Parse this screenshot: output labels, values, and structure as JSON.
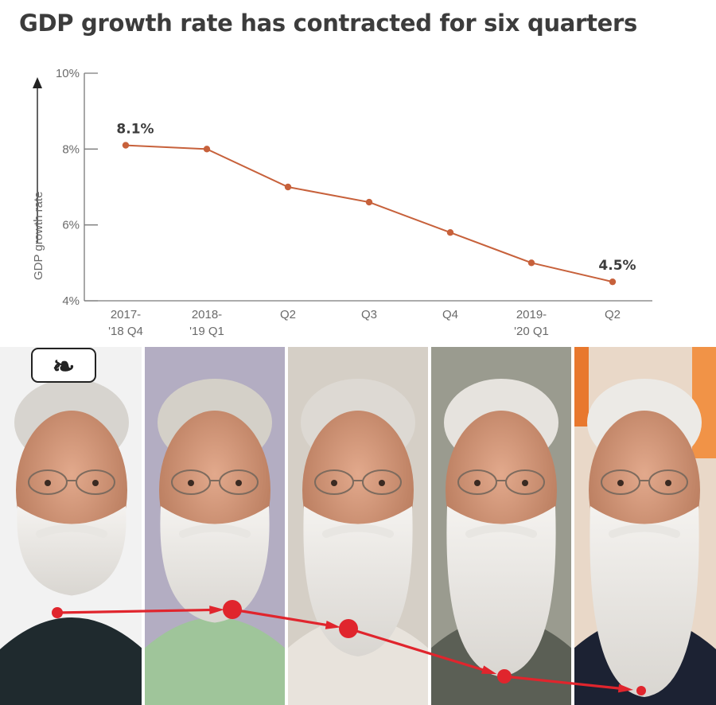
{
  "title": "GDP growth rate has contracted for six quarters",
  "colors": {
    "line": "#c7613b",
    "axis": "#7a7a7a",
    "overlay_arrow": "#e0252d",
    "title": "#3c3c3c"
  },
  "chart_data": {
    "type": "line",
    "title": "GDP growth rate has contracted for six quarters",
    "ylabel": "GDP growth rate",
    "xlabel": "",
    "ylim": [
      4,
      10
    ],
    "yticks": [
      4,
      6,
      8,
      10
    ],
    "ytick_labels": [
      "4%",
      "6%",
      "8%",
      "10%"
    ],
    "categories": [
      [
        "2017-",
        "'18 Q4"
      ],
      [
        "2018-",
        "'19 Q1"
      ],
      [
        "Q2"
      ],
      [
        "Q3"
      ],
      [
        "Q4"
      ],
      [
        "2019-",
        "'20 Q1"
      ],
      [
        "Q2"
      ]
    ],
    "series": [
      {
        "values": [
          8.1,
          8.0,
          7.0,
          6.6,
          5.8,
          5.0,
          4.5
        ]
      }
    ],
    "data_labels": [
      {
        "index": 0,
        "text": "8.1%"
      },
      {
        "index": 6,
        "text": "4.5%"
      }
    ],
    "grid": false
  },
  "photo_panel": {
    "panels": 5,
    "description_icon": "photo-strip",
    "arrow_values_desc": [
      8.1,
      8.0,
      7.0,
      5.8,
      4.5
    ]
  }
}
